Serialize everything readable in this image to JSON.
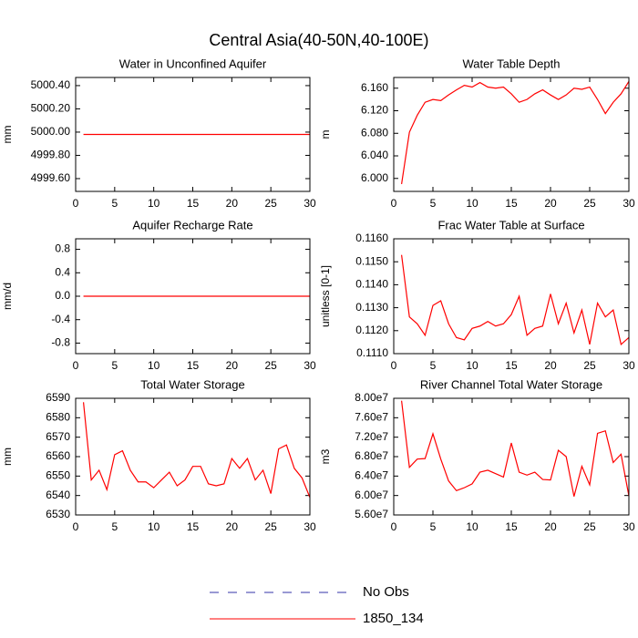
{
  "title": "Central Asia(40-50N,40-100E)",
  "legend": [
    {
      "name": "No Obs",
      "color": "#3333aa",
      "dashed": true
    },
    {
      "name": "1850_134",
      "color": "#ff0000",
      "dashed": false
    }
  ],
  "chart_data": [
    {
      "type": "line",
      "title": "Water in Unconfined Aquifer",
      "ylabel": "mm",
      "color": "#ff0000",
      "x": [
        1,
        2,
        3,
        4,
        5,
        6,
        7,
        8,
        9,
        10,
        11,
        12,
        13,
        14,
        15,
        16,
        17,
        18,
        19,
        20,
        21,
        22,
        23,
        24,
        25,
        26,
        27,
        28,
        29,
        30
      ],
      "values": [
        4999.98,
        4999.98,
        4999.98,
        4999.98,
        4999.98,
        4999.98,
        4999.98,
        4999.98,
        4999.98,
        4999.98,
        4999.98,
        4999.98,
        4999.98,
        4999.98,
        4999.98,
        4999.98,
        4999.98,
        4999.98,
        4999.98,
        4999.98,
        4999.98,
        4999.98,
        4999.98,
        4999.98,
        4999.98,
        4999.98,
        4999.98,
        4999.98,
        4999.98,
        4999.98
      ],
      "xlim": [
        0,
        30
      ],
      "xticks": [
        0,
        5,
        10,
        15,
        20,
        25,
        30
      ],
      "ylim": [
        4999.49,
        5000.47
      ],
      "yticks": [
        {
          "value": 4999.6,
          "label": "4999.60"
        },
        {
          "value": 4999.8,
          "label": "4999.80"
        },
        {
          "value": 5000,
          "label": "5000.00"
        },
        {
          "value": 5000.2,
          "label": "5000.20"
        },
        {
          "value": 5000.4,
          "label": "5000.40"
        }
      ]
    },
    {
      "type": "line",
      "title": "Water Table Depth",
      "ylabel": "m",
      "color": "#ff0000",
      "x": [
        1,
        2,
        3,
        4,
        5,
        6,
        7,
        8,
        9,
        10,
        11,
        12,
        13,
        14,
        15,
        16,
        17,
        18,
        19,
        20,
        21,
        22,
        23,
        24,
        25,
        26,
        27,
        28,
        29,
        30
      ],
      "values": [
        5.99,
        6.082,
        6.112,
        6.135,
        6.14,
        6.138,
        6.148,
        6.157,
        6.165,
        6.162,
        6.17,
        6.162,
        6.16,
        6.162,
        6.15,
        6.135,
        6.14,
        6.15,
        6.157,
        6.148,
        6.14,
        6.148,
        6.16,
        6.158,
        6.162,
        6.14,
        6.115,
        6.135,
        6.15,
        6.172
      ],
      "xlim": [
        0,
        30
      ],
      "xticks": [
        0,
        5,
        10,
        15,
        20,
        25,
        30
      ],
      "ylim": [
        5.977,
        6.179
      ],
      "yticks": [
        {
          "value": 6.0,
          "label": "6.000"
        },
        {
          "value": 6.04,
          "label": "6.040"
        },
        {
          "value": 6.08,
          "label": "6.080"
        },
        {
          "value": 6.12,
          "label": "6.120"
        },
        {
          "value": 6.16,
          "label": "6.160"
        }
      ]
    },
    {
      "type": "line",
      "title": "Aquifer Recharge Rate",
      "ylabel": "mm/d",
      "color": "#ff0000",
      "x": [
        1,
        2,
        3,
        4,
        5,
        6,
        7,
        8,
        9,
        10,
        11,
        12,
        13,
        14,
        15,
        16,
        17,
        18,
        19,
        20,
        21,
        22,
        23,
        24,
        25,
        26,
        27,
        28,
        29,
        30
      ],
      "values": [
        0,
        0,
        0,
        0,
        0,
        0,
        0,
        0,
        0,
        0,
        0,
        0,
        0,
        0,
        0,
        0,
        0,
        0,
        0,
        0,
        0,
        0,
        0,
        0,
        0,
        0,
        0,
        0,
        0,
        0
      ],
      "xlim": [
        0,
        30
      ],
      "xticks": [
        0,
        5,
        10,
        15,
        20,
        25,
        30
      ],
      "ylim": [
        -0.98,
        0.98
      ],
      "yticks": [
        -0.8,
        -0.4,
        {
          "value": 0,
          "label": "0.0"
        },
        0.4,
        0.8
      ]
    },
    {
      "type": "line",
      "title": "Frac Water Table at Surface",
      "ylabel": "unitless [0-1]",
      "color": "#ff0000",
      "x": [
        1,
        2,
        3,
        4,
        5,
        6,
        7,
        8,
        9,
        10,
        11,
        12,
        13,
        14,
        15,
        16,
        17,
        18,
        19,
        20,
        21,
        22,
        23,
        24,
        25,
        26,
        27,
        28,
        29,
        30
      ],
      "values": [
        0.1153,
        0.1126,
        0.1123,
        0.1118,
        0.1131,
        0.1133,
        0.1123,
        0.1117,
        0.1116,
        0.1121,
        0.1122,
        0.1124,
        0.1122,
        0.1123,
        0.1127,
        0.1135,
        0.1118,
        0.1121,
        0.1122,
        0.1136,
        0.1123,
        0.1132,
        0.1119,
        0.1129,
        0.1114,
        0.1132,
        0.1126,
        0.1129,
        0.1114,
        0.1117
      ],
      "xlim": [
        0,
        30
      ],
      "xticks": [
        0,
        5,
        10,
        15,
        20,
        25,
        30
      ],
      "ylim": [
        0.111,
        0.116
      ],
      "yticks": [
        {
          "value": 0.111,
          "label": "0.1110"
        },
        {
          "value": 0.112,
          "label": "0.1120"
        },
        {
          "value": 0.113,
          "label": "0.1130"
        },
        {
          "value": 0.114,
          "label": "0.1140"
        },
        {
          "value": 0.115,
          "label": "0.1150"
        },
        {
          "value": 0.116,
          "label": "0.1160"
        }
      ]
    },
    {
      "type": "line",
      "title": "Total Water Storage",
      "ylabel": "mm",
      "color": "#ff0000",
      "x": [
        1,
        2,
        3,
        4,
        5,
        6,
        7,
        8,
        9,
        10,
        11,
        12,
        13,
        14,
        15,
        16,
        17,
        18,
        19,
        20,
        21,
        22,
        23,
        24,
        25,
        26,
        27,
        28,
        29,
        30
      ],
      "values": [
        6588,
        6548,
        6553,
        6543,
        6561,
        6563,
        6553,
        6547,
        6547,
        6544,
        6548,
        6552,
        6545,
        6548,
        6555,
        6555,
        6546,
        6545,
        6546,
        6559,
        6554,
        6559,
        6548,
        6553,
        6541,
        6564,
        6566,
        6554,
        6549,
        6539
      ],
      "xlim": [
        0,
        30
      ],
      "xticks": [
        0,
        5,
        10,
        15,
        20,
        25,
        30
      ],
      "ylim": [
        6530,
        6590
      ],
      "yticks": [
        6530,
        6540,
        6550,
        6560,
        6570,
        6580,
        6590
      ]
    },
    {
      "type": "line",
      "title": "River Channel Total Water Storage",
      "ylabel": "m3",
      "color": "#ff0000",
      "x": [
        1,
        2,
        3,
        4,
        5,
        6,
        7,
        8,
        9,
        10,
        11,
        12,
        13,
        14,
        15,
        16,
        17,
        18,
        19,
        20,
        21,
        22,
        23,
        24,
        25,
        26,
        27,
        28,
        29,
        30
      ],
      "values": [
        79500000,
        65800000,
        67500000,
        67600000,
        72700000,
        67500000,
        63000000,
        61000000,
        61600000,
        62400000,
        64800000,
        65200000,
        64500000,
        63800000,
        70800000,
        64800000,
        64200000,
        64800000,
        63300000,
        63200000,
        69300000,
        68000000,
        59800000,
        66000000,
        62200000,
        72800000,
        73300000,
        66800000,
        68500000,
        59900000
      ],
      "xlim": [
        0,
        30
      ],
      "xticks": [
        0,
        5,
        10,
        15,
        20,
        25,
        30
      ],
      "ylim": [
        56000000,
        80000000
      ],
      "yticks": [
        {
          "value": 56000000,
          "label": "5.60e7"
        },
        {
          "value": 60000000,
          "label": "6.00e7"
        },
        {
          "value": 64000000,
          "label": "6.40e7"
        },
        {
          "value": 68000000,
          "label": "6.80e7"
        },
        {
          "value": 72000000,
          "label": "7.20e7"
        },
        {
          "value": 76000000,
          "label": "7.60e7"
        },
        {
          "value": 80000000,
          "label": "8.00e7"
        }
      ]
    }
  ]
}
